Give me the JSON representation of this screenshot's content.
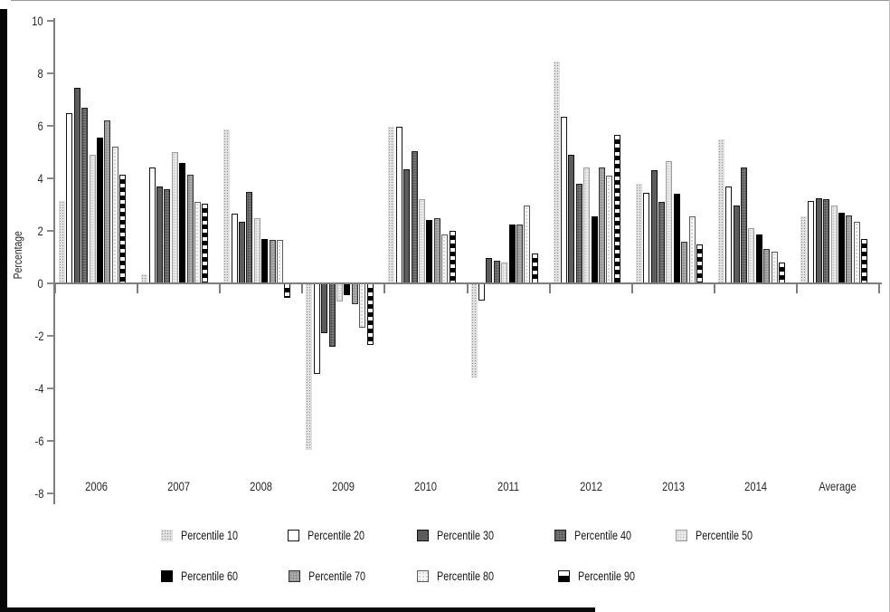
{
  "chart_data": {
    "type": "bar",
    "title": "",
    "ylabel": "Percentage",
    "ylim": [
      -8,
      10
    ],
    "ytick_step": 2,
    "grid": false,
    "legend_position": "bottom",
    "categories": [
      "2006",
      "2007",
      "2008",
      "2009",
      "2010",
      "2011",
      "2012",
      "2013",
      "2014",
      "Average"
    ],
    "series": [
      {
        "name": "Percentile 10",
        "style": "p10",
        "pattern": "light-gray-dots",
        "color": "#c4c4c4",
        "values": [
          3.15,
          0.35,
          5.85,
          -6.35,
          5.95,
          -3.6,
          8.45,
          3.8,
          5.5,
          2.55
        ]
      },
      {
        "name": "Percentile 20",
        "style": "p20",
        "pattern": "white-outline",
        "color": "#ffffff",
        "values": [
          6.5,
          4.4,
          2.65,
          -3.45,
          5.95,
          -0.65,
          6.35,
          3.45,
          3.7,
          3.15
        ]
      },
      {
        "name": "Percentile 30",
        "style": "p30",
        "pattern": "dark-gray-solid",
        "color": "#5c5c5c",
        "values": [
          7.45,
          3.7,
          2.35,
          -1.9,
          4.35,
          0.95,
          4.9,
          4.3,
          2.95,
          3.25
        ]
      },
      {
        "name": "Percentile 40",
        "style": "p40",
        "pattern": "dark-gray-dots",
        "color": "#767676",
        "values": [
          6.7,
          3.6,
          3.5,
          -2.4,
          5.05,
          0.85,
          3.8,
          3.1,
          4.4,
          3.2
        ]
      },
      {
        "name": "Percentile 50",
        "style": "p50",
        "pattern": "very-light-gray-dots",
        "color": "#ededed",
        "values": [
          4.9,
          5.0,
          2.5,
          -0.7,
          3.2,
          0.8,
          4.4,
          4.65,
          2.1,
          2.95
        ]
      },
      {
        "name": "Percentile 60",
        "style": "p60",
        "pattern": "black-solid",
        "color": "#000000",
        "values": [
          5.55,
          4.6,
          1.7,
          -0.45,
          2.4,
          2.25,
          2.55,
          3.4,
          1.85,
          2.7
        ]
      },
      {
        "name": "Percentile 70",
        "style": "p70",
        "pattern": "medium-gray-dots",
        "color": "#ababab",
        "values": [
          6.2,
          4.15,
          1.65,
          -0.8,
          2.5,
          2.25,
          4.4,
          1.6,
          1.3,
          2.6
        ]
      },
      {
        "name": "Percentile 80",
        "style": "p80",
        "pattern": "white-dots-outline",
        "color": "#f6f6f6",
        "values": [
          5.2,
          3.1,
          1.65,
          -1.7,
          1.85,
          2.95,
          4.1,
          2.55,
          1.2,
          2.35
        ]
      },
      {
        "name": "Percentile 90",
        "style": "p90",
        "pattern": "black-white-horizontal-stripes",
        "color": "#000000",
        "values": [
          4.15,
          3.05,
          -0.55,
          -2.35,
          2.0,
          1.15,
          5.65,
          1.5,
          0.8,
          1.7
        ]
      }
    ]
  }
}
